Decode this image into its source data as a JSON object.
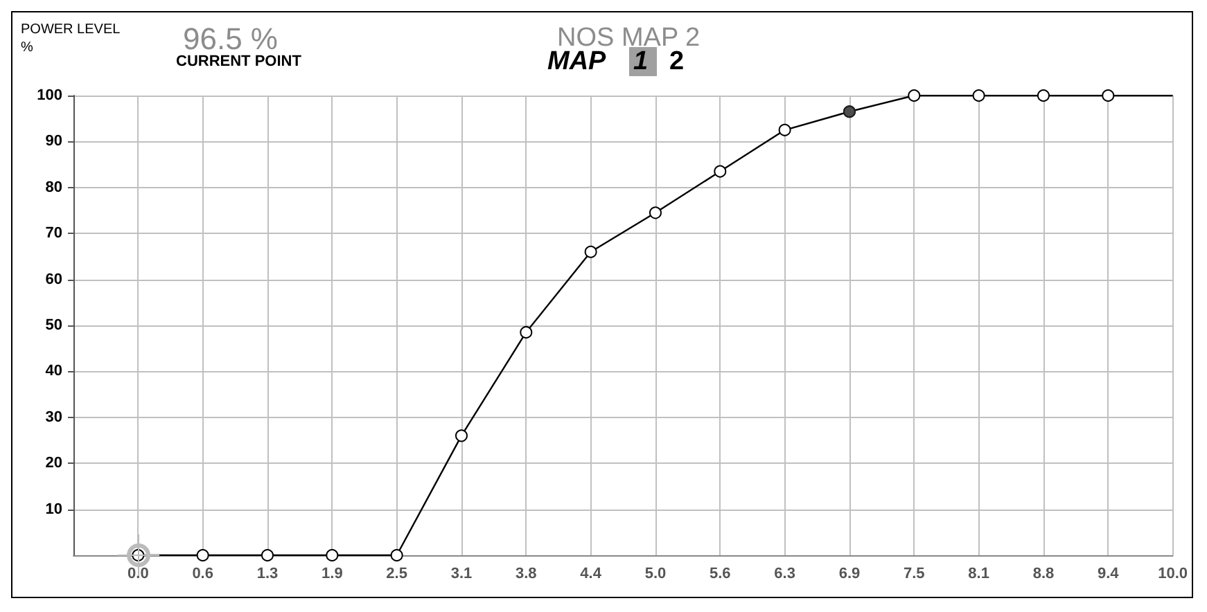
{
  "chart_data": {
    "type": "line",
    "title": "NOS MAP 2",
    "ylabel": "POWER LEVEL\n%",
    "annotations": [
      "96.5 %",
      "CURRENT POINT",
      "MAP",
      "1",
      "2"
    ],
    "series": [
      {
        "color": "#000000",
        "marker": "circle",
        "x": [
          0,
          0.625,
          1.25,
          1.875,
          2.5,
          3.125,
          3.75,
          4.375,
          5,
          5.625,
          6.25,
          6.875,
          7.5,
          8.125,
          8.75,
          9.375
        ],
        "values": [
          0,
          0,
          0,
          0,
          0,
          26,
          48.5,
          66,
          74.5,
          83.5,
          92.5,
          96.5,
          100,
          100,
          100,
          100
        ]
      },
      {
        "color": "#000000",
        "marker": "none",
        "x": [
          9.375,
          10
        ],
        "values": [
          100,
          100
        ]
      },
      {
        "type": "scatter",
        "color": "#222222",
        "marker": "circle",
        "x": [
          6.875
        ],
        "values": [
          96.5
        ]
      }
    ],
    "xlim": [
      -0.625,
      10
    ],
    "xticks": [
      {
        "value": 0,
        "label": "0.0"
      },
      {
        "value": 0.625,
        "label": "0.6"
      },
      {
        "value": 1.25,
        "label": "1.3"
      },
      {
        "value": 1.875,
        "label": "1.9"
      },
      {
        "value": 2.5,
        "label": "2.5"
      },
      {
        "value": 3.125,
        "label": "3.1"
      },
      {
        "value": 3.75,
        "label": "3.8"
      },
      {
        "value": 4.375,
        "label": "4.4"
      },
      {
        "value": 5,
        "label": "5.0"
      },
      {
        "value": 5.625,
        "label": "5.6"
      },
      {
        "value": 6.25,
        "label": "6.3"
      },
      {
        "value": 6.875,
        "label": "6.9"
      },
      {
        "value": 7.5,
        "label": "7.5"
      },
      {
        "value": 8.125,
        "label": "8.1"
      },
      {
        "value": 8.75,
        "label": "8.8"
      },
      {
        "value": 9.375,
        "label": "9.4"
      },
      {
        "value": 10,
        "label": "10.0"
      }
    ],
    "ylim": [
      0,
      100
    ],
    "yticks": [
      10,
      20,
      30,
      40,
      50,
      60,
      70,
      80,
      90,
      100
    ],
    "grid": true
  }
}
